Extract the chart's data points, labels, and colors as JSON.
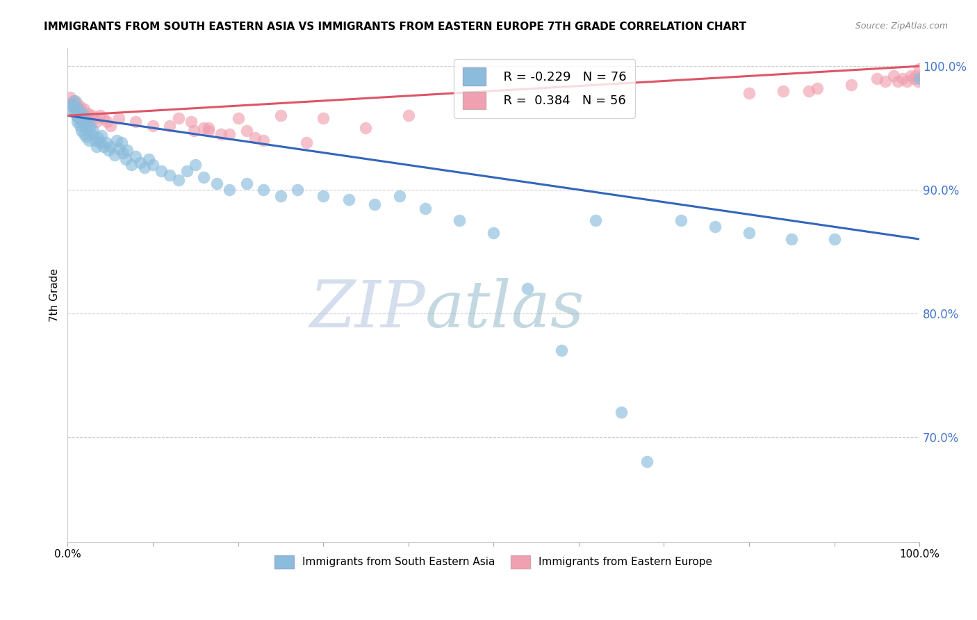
{
  "title": "IMMIGRANTS FROM SOUTH EASTERN ASIA VS IMMIGRANTS FROM EASTERN EUROPE 7TH GRADE CORRELATION CHART",
  "source": "Source: ZipAtlas.com",
  "ylabel": "7th Grade",
  "xlim": [
    0.0,
    1.0
  ],
  "ylim": [
    0.615,
    1.015
  ],
  "blue_R": -0.229,
  "blue_N": 76,
  "pink_R": 0.384,
  "pink_N": 56,
  "blue_color": "#8BBCDC",
  "pink_color": "#F0A0B0",
  "blue_line_color": "#3366BB",
  "pink_line_color": "#DD5566",
  "watermark_zip": "ZIP",
  "watermark_atlas": "atlas",
  "ytick_vals": [
    0.7,
    0.8,
    0.9,
    1.0
  ],
  "ytick_labels": [
    "70.0%",
    "80.0%",
    "90.0%",
    "100.0%"
  ],
  "xtick_vals": [
    0.0,
    0.1,
    0.2,
    0.3,
    0.4,
    0.5,
    0.6,
    0.7,
    0.8,
    0.9,
    1.0
  ],
  "xtick_labels": [
    "0.0%",
    "",
    "",
    "",
    "",
    "",
    "",
    "",
    "",
    "",
    "100.0%"
  ],
  "blue_line_x0": 0.0,
  "blue_line_y0": 0.96,
  "blue_line_x1": 1.0,
  "blue_line_y1": 0.86,
  "pink_line_x0": 0.0,
  "pink_line_y0": 0.96,
  "pink_line_x1": 1.0,
  "pink_line_y1": 1.0,
  "blue_scatter_x": [
    0.003,
    0.005,
    0.007,
    0.008,
    0.009,
    0.01,
    0.011,
    0.012,
    0.013,
    0.014,
    0.015,
    0.016,
    0.017,
    0.018,
    0.019,
    0.02,
    0.021,
    0.022,
    0.023,
    0.024,
    0.025,
    0.027,
    0.028,
    0.03,
    0.032,
    0.034,
    0.036,
    0.038,
    0.04,
    0.042,
    0.045,
    0.048,
    0.05,
    0.055,
    0.058,
    0.06,
    0.063,
    0.065,
    0.068,
    0.07,
    0.075,
    0.08,
    0.085,
    0.09,
    0.095,
    0.1,
    0.11,
    0.12,
    0.13,
    0.14,
    0.15,
    0.16,
    0.175,
    0.19,
    0.21,
    0.23,
    0.25,
    0.27,
    0.3,
    0.33,
    0.36,
    0.39,
    0.42,
    0.46,
    0.5,
    0.54,
    0.58,
    0.62,
    0.65,
    0.68,
    0.72,
    0.76,
    0.8,
    0.85,
    0.9,
    1.0
  ],
  "blue_scatter_y": [
    0.97,
    0.965,
    0.968,
    0.963,
    0.972,
    0.96,
    0.955,
    0.958,
    0.965,
    0.952,
    0.96,
    0.948,
    0.955,
    0.962,
    0.945,
    0.958,
    0.95,
    0.943,
    0.953,
    0.948,
    0.94,
    0.952,
    0.945,
    0.948,
    0.94,
    0.935,
    0.942,
    0.938,
    0.944,
    0.935,
    0.938,
    0.932,
    0.935,
    0.928,
    0.94,
    0.933,
    0.938,
    0.93,
    0.925,
    0.932,
    0.92,
    0.927,
    0.922,
    0.918,
    0.925,
    0.92,
    0.915,
    0.912,
    0.908,
    0.915,
    0.92,
    0.91,
    0.905,
    0.9,
    0.905,
    0.9,
    0.895,
    0.9,
    0.895,
    0.892,
    0.888,
    0.895,
    0.885,
    0.875,
    0.865,
    0.82,
    0.77,
    0.875,
    0.72,
    0.68,
    0.875,
    0.87,
    0.865,
    0.86,
    0.86,
    0.99
  ],
  "pink_scatter_x": [
    0.003,
    0.005,
    0.007,
    0.009,
    0.011,
    0.013,
    0.015,
    0.017,
    0.019,
    0.021,
    0.023,
    0.025,
    0.028,
    0.031,
    0.034,
    0.038,
    0.042,
    0.046,
    0.05,
    0.06,
    0.08,
    0.1,
    0.13,
    0.16,
    0.2,
    0.25,
    0.3,
    0.35,
    0.4,
    0.12,
    0.18,
    0.22,
    0.28,
    0.87,
    0.92,
    0.95,
    0.96,
    0.97,
    0.975,
    0.98,
    0.985,
    0.99,
    0.993,
    0.996,
    0.998,
    1.0,
    0.145,
    0.165,
    0.148,
    0.8,
    0.84,
    0.88,
    0.165,
    0.19,
    0.21,
    0.23
  ],
  "pink_scatter_y": [
    0.975,
    0.968,
    0.972,
    0.966,
    0.97,
    0.963,
    0.967,
    0.96,
    0.965,
    0.958,
    0.962,
    0.956,
    0.96,
    0.958,
    0.955,
    0.96,
    0.958,
    0.955,
    0.952,
    0.958,
    0.955,
    0.952,
    0.958,
    0.95,
    0.958,
    0.96,
    0.958,
    0.95,
    0.96,
    0.952,
    0.945,
    0.942,
    0.938,
    0.98,
    0.985,
    0.99,
    0.988,
    0.992,
    0.988,
    0.99,
    0.988,
    0.992,
    0.99,
    0.992,
    0.988,
    0.998,
    0.955,
    0.95,
    0.948,
    0.978,
    0.98,
    0.982,
    0.948,
    0.945,
    0.948,
    0.94
  ]
}
